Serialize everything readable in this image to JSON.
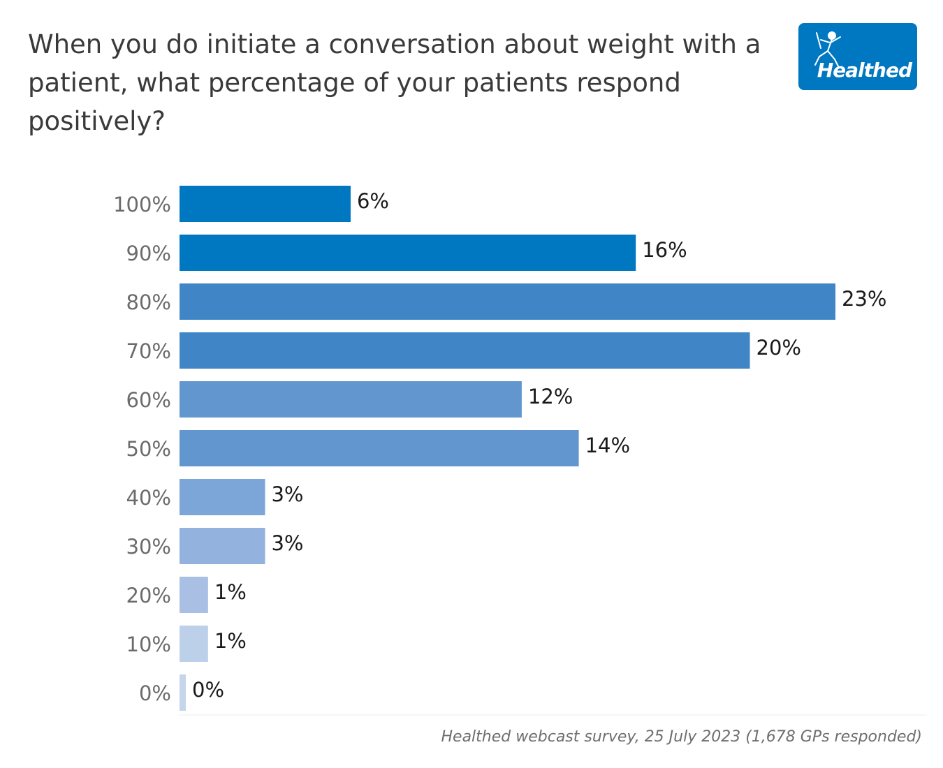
{
  "title": "When you do initiate a conversation about weight with a patient, what percentage of your patients respond positively?",
  "logo": {
    "text": "Healthed",
    "icon": "hermes-figure-icon",
    "color": "#0077c1"
  },
  "source": "Healthed webcast survey, 25 July 2023 (1,678 GPs responded)",
  "chart_data": {
    "type": "bar",
    "orientation": "horizontal",
    "categories": [
      "100%",
      "90%",
      "80%",
      "70%",
      "60%",
      "50%",
      "40%",
      "30%",
      "20%",
      "10%",
      "0%"
    ],
    "values": [
      6,
      16,
      23,
      20,
      12,
      14,
      3,
      3,
      1,
      1,
      0
    ],
    "data_labels": [
      "6%",
      "16%",
      "23%",
      "20%",
      "12%",
      "14%",
      "3%",
      "3%",
      "1%",
      "1%",
      "0%"
    ],
    "bar_colors": [
      "#0077c1",
      "#0077c1",
      "#4086c6",
      "#4086c6",
      "#6196cf",
      "#6196cf",
      "#7ba6d7",
      "#93b2dd",
      "#a9c0e4",
      "#bdd0ea",
      "#c5d5ec"
    ],
    "xlim": [
      0,
      23
    ],
    "xlabel": "",
    "ylabel": "",
    "grid": false,
    "legend": false
  }
}
